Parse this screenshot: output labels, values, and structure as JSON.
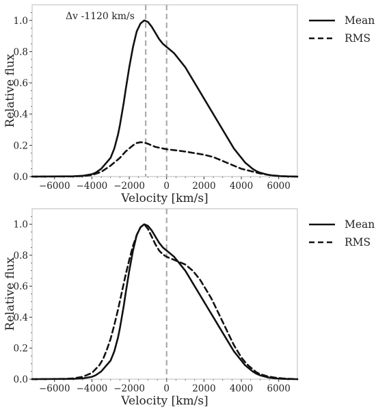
{
  "chart_data": [
    {
      "type": "line",
      "xlabel": "Velocity [km/s]",
      "ylabel": "Relative flux",
      "xlim": [
        -7200,
        7000
      ],
      "ylim": [
        0,
        1.1
      ],
      "xticks": [
        -6000,
        -4000,
        -2000,
        0,
        2000,
        4000,
        6000
      ],
      "xtick_labels": [
        "−6000",
        "−4000",
        "−2000",
        "0",
        "2000",
        "4000",
        "6000"
      ],
      "yticks": [
        0.0,
        0.2,
        0.4,
        0.6,
        0.8,
        1.0
      ],
      "ytick_labels": [
        "0.0",
        "0.2",
        "0.4",
        "0.6",
        "0.8",
        "1.0"
      ],
      "grid": false,
      "legend": "outside-right",
      "annotation": "Δv -1120 km/s",
      "vlines": [
        {
          "x": -1120,
          "style": "dashed",
          "color": "#aaaaaa"
        },
        {
          "x": 0,
          "style": "dashed",
          "color": "#aaaaaa"
        }
      ],
      "series": [
        {
          "name": "Mean",
          "style": "solid",
          "color": "#111111",
          "x": [
            -7200,
            -5000,
            -4500,
            -4000,
            -3800,
            -3500,
            -3000,
            -2800,
            -2600,
            -2500,
            -2300,
            -2200,
            -2000,
            -1800,
            -1600,
            -1400,
            -1200,
            -1000,
            -800,
            -600,
            -400,
            -200,
            0,
            200,
            400,
            600,
            800,
            1000,
            1200,
            1400,
            1600,
            1800,
            2000,
            2200,
            2400,
            2600,
            2800,
            3000,
            3200,
            3400,
            3600,
            3800,
            4000,
            4200,
            4400,
            4600,
            4800,
            5000,
            5400,
            5800,
            6200,
            6600,
            7000
          ],
          "y": [
            0,
            0.002,
            0.005,
            0.015,
            0.025,
            0.05,
            0.12,
            0.18,
            0.27,
            0.33,
            0.47,
            0.55,
            0.7,
            0.83,
            0.93,
            0.98,
            1.0,
            0.99,
            0.96,
            0.92,
            0.88,
            0.85,
            0.83,
            0.81,
            0.79,
            0.76,
            0.73,
            0.7,
            0.66,
            0.62,
            0.58,
            0.54,
            0.5,
            0.46,
            0.42,
            0.38,
            0.34,
            0.3,
            0.26,
            0.22,
            0.18,
            0.15,
            0.12,
            0.09,
            0.07,
            0.05,
            0.035,
            0.025,
            0.012,
            0.005,
            0.002,
            0.001,
            0
          ]
        },
        {
          "name": "RMS",
          "style": "dashed",
          "color": "#111111",
          "x": [
            -7200,
            -5000,
            -4500,
            -4000,
            -3500,
            -3000,
            -2800,
            -2500,
            -2200,
            -2000,
            -1800,
            -1600,
            -1400,
            -1200,
            -1000,
            -800,
            -600,
            -400,
            -200,
            0,
            200,
            500,
            1000,
            1500,
            2000,
            2500,
            3000,
            3500,
            4000,
            4500,
            5000,
            5500,
            6000,
            6500,
            7000
          ],
          "y": [
            0,
            0.001,
            0.003,
            0.01,
            0.03,
            0.07,
            0.09,
            0.12,
            0.16,
            0.18,
            0.2,
            0.215,
            0.22,
            0.218,
            0.21,
            0.2,
            0.19,
            0.185,
            0.18,
            0.175,
            0.172,
            0.168,
            0.16,
            0.15,
            0.14,
            0.125,
            0.1,
            0.075,
            0.05,
            0.035,
            0.02,
            0.01,
            0.004,
            0.001,
            0
          ]
        }
      ]
    },
    {
      "type": "line",
      "xlabel": "Velocity [km/s]",
      "ylabel": "Relative flux",
      "xlim": [
        -7200,
        7000
      ],
      "ylim": [
        0,
        1.1
      ],
      "xticks": [
        -6000,
        -4000,
        -2000,
        0,
        2000,
        4000,
        6000
      ],
      "xtick_labels": [
        "−6000",
        "−4000",
        "−2000",
        "0",
        "2000",
        "4000",
        "6000"
      ],
      "yticks": [
        0.0,
        0.2,
        0.4,
        0.6,
        0.8,
        1.0
      ],
      "ytick_labels": [
        "0.0",
        "0.2",
        "0.4",
        "0.6",
        "0.8",
        "1.0"
      ],
      "grid": false,
      "legend": "outside-right",
      "vlines": [
        {
          "x": 0,
          "style": "dashed",
          "color": "#aaaaaa"
        }
      ],
      "series": [
        {
          "name": "Mean",
          "style": "solid",
          "color": "#111111",
          "x": [
            -7200,
            -5000,
            -4500,
            -4000,
            -3800,
            -3500,
            -3000,
            -2800,
            -2600,
            -2500,
            -2300,
            -2200,
            -2000,
            -1800,
            -1600,
            -1400,
            -1200,
            -1000,
            -800,
            -600,
            -400,
            -200,
            0,
            200,
            400,
            600,
            800,
            1000,
            1200,
            1400,
            1600,
            1800,
            2000,
            2200,
            2400,
            2600,
            2800,
            3000,
            3200,
            3400,
            3600,
            3800,
            4000,
            4200,
            4400,
            4600,
            4800,
            5000,
            5400,
            5800,
            6200,
            6600,
            7000
          ],
          "y": [
            0,
            0.002,
            0.005,
            0.015,
            0.025,
            0.05,
            0.12,
            0.18,
            0.27,
            0.33,
            0.47,
            0.55,
            0.7,
            0.83,
            0.93,
            0.98,
            1.0,
            0.99,
            0.96,
            0.92,
            0.88,
            0.85,
            0.83,
            0.81,
            0.79,
            0.76,
            0.73,
            0.7,
            0.66,
            0.62,
            0.58,
            0.54,
            0.5,
            0.46,
            0.42,
            0.38,
            0.34,
            0.3,
            0.26,
            0.22,
            0.18,
            0.15,
            0.12,
            0.09,
            0.07,
            0.05,
            0.035,
            0.025,
            0.012,
            0.005,
            0.002,
            0.001,
            0
          ]
        },
        {
          "name": "RMS",
          "style": "dashed",
          "color": "#111111",
          "x": [
            -7200,
            -5500,
            -5000,
            -4500,
            -4000,
            -3600,
            -3400,
            -3200,
            -3000,
            -2800,
            -2600,
            -2400,
            -2200,
            -2000,
            -1800,
            -1600,
            -1400,
            -1200,
            -1000,
            -800,
            -600,
            -400,
            -200,
            0,
            200,
            400,
            600,
            800,
            1000,
            1200,
            1400,
            1600,
            1800,
            2000,
            2200,
            2400,
            2600,
            2800,
            3000,
            3200,
            3400,
            3600,
            3800,
            4000,
            4200,
            4400,
            4600,
            4800,
            5000,
            5400,
            5800,
            6200,
            6600,
            7000
          ],
          "y": [
            0,
            0.002,
            0.005,
            0.015,
            0.04,
            0.09,
            0.13,
            0.19,
            0.26,
            0.35,
            0.45,
            0.56,
            0.67,
            0.77,
            0.86,
            0.93,
            0.98,
            1.0,
            0.97,
            0.92,
            0.87,
            0.83,
            0.805,
            0.79,
            0.78,
            0.77,
            0.76,
            0.75,
            0.74,
            0.72,
            0.7,
            0.67,
            0.64,
            0.6,
            0.56,
            0.52,
            0.47,
            0.42,
            0.37,
            0.32,
            0.27,
            0.22,
            0.18,
            0.14,
            0.11,
            0.085,
            0.065,
            0.045,
            0.033,
            0.018,
            0.01,
            0.005,
            0.002,
            0
          ]
        }
      ]
    }
  ]
}
